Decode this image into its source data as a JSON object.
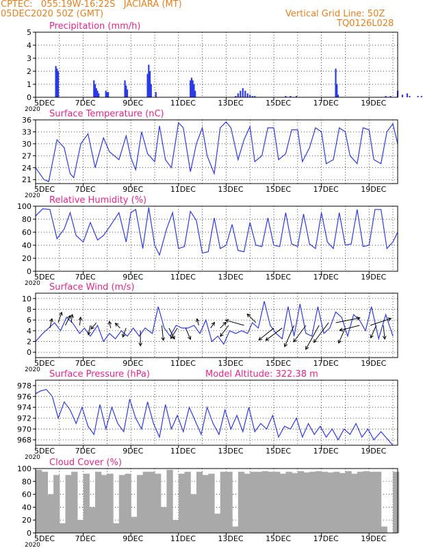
{
  "header": {
    "left_line1": "CPTEC:   055:19W-16:22S   JACIARA (MT)",
    "left_line2": "05DEC2020 50Z (GMT)",
    "right_line1": "Vertical Grid Line: 50Z",
    "right_line2": "TQ0126L028"
  },
  "colors": {
    "title": "#e8238c",
    "header": "#e8801e",
    "line": "#2a3be6",
    "cloud": "#a9a9a9"
  },
  "x_ticks": [
    "5DEC",
    "7DEC",
    "9DEC",
    "11DEC",
    "13DEC",
    "15DEC",
    "17DEC",
    "19DEC"
  ],
  "year_label": "2020",
  "chart_data": [
    {
      "type": "bar",
      "title": "Precipitation (mm/h)",
      "ylim": [
        0,
        5
      ],
      "yticks": [
        0,
        1,
        2,
        3,
        4,
        5
      ],
      "x_unit": "days since 5DEC 00Z",
      "x": [
        0.85,
        0.9,
        0.95,
        2.45,
        2.5,
        2.55,
        2.6,
        2.65,
        2.95,
        3.0,
        3.05,
        3.75,
        3.8,
        3.85,
        4.7,
        4.75,
        4.8,
        4.85,
        5.05,
        6.5,
        6.55,
        6.6,
        6.65,
        6.7,
        8.4,
        8.5,
        8.6,
        8.7,
        8.8,
        8.9,
        9.0,
        9.1,
        9.2,
        10.5,
        10.7,
        10.95,
        12.6,
        12.65,
        12.7,
        14.7,
        14.9,
        15.2,
        15.4,
        15.6,
        15.7,
        16.05,
        16.2,
        16.35,
        16.5,
        16.55,
        16.6,
        17.3,
        17.35,
        17.4,
        17.45,
        17.5,
        17.55,
        17.6,
        17.65,
        18.85
      ],
      "values": [
        2.4,
        2.2,
        2.0,
        1.3,
        1.0,
        0.7,
        0.5,
        0.3,
        0.5,
        0.4,
        0.4,
        1.3,
        0.9,
        0.6,
        1.8,
        2.5,
        2.0,
        1.0,
        0.4,
        1.3,
        1.5,
        1.3,
        1.0,
        0.5,
        0.1,
        0.3,
        0.5,
        0.7,
        0.5,
        0.3,
        0.2,
        0.1,
        0.1,
        0.1,
        0.1,
        0.1,
        2.2,
        1.0,
        0.2,
        0.1,
        0.1,
        0.5,
        0.2,
        0.3,
        0.1,
        0.1,
        0.1,
        0.1,
        1.3,
        2.2,
        0.8,
        0.8,
        0.6,
        0.7,
        0.3,
        0.5,
        0.3,
        0.2,
        0.1,
        1.1
      ]
    },
    {
      "type": "line",
      "title": "Surface Temperature (nC)",
      "ylim": [
        20,
        36
      ],
      "yticks": [
        21,
        24,
        27,
        30,
        33,
        36
      ],
      "x_unit": "days since 5DEC 00Z",
      "x": [
        0.0,
        0.35,
        0.55,
        0.9,
        1.2,
        1.45,
        1.6,
        1.9,
        2.2,
        2.5,
        2.85,
        3.1,
        3.5,
        3.8,
        4.0,
        4.2,
        4.45,
        4.7,
        5.0,
        5.2,
        5.45,
        5.7,
        6.0,
        6.2,
        6.5,
        6.75,
        7.0,
        7.2,
        7.5,
        7.75,
        8.0,
        8.2,
        8.5,
        8.75,
        9.0,
        9.2,
        9.5,
        9.75,
        10.0,
        10.2,
        10.5,
        10.75,
        11.0,
        11.2,
        11.5,
        11.75,
        12.0,
        12.2,
        12.5,
        12.75,
        13.0,
        13.2,
        13.5,
        13.75,
        14.0,
        14.2,
        14.5,
        14.75,
        15.0,
        15.2
      ],
      "values": [
        24.0,
        21.0,
        20.5,
        31.0,
        29.0,
        22.5,
        21.5,
        30.0,
        32.5,
        24.0,
        31.5,
        28.0,
        26.0,
        32.0,
        26.5,
        23.5,
        33.0,
        27.5,
        25.5,
        34.5,
        26.0,
        24.0,
        35.3,
        34.0,
        23.0,
        30.0,
        34.0,
        27.0,
        22.5,
        34.0,
        35.5,
        34.0,
        26.0,
        31.0,
        34.3,
        25.5,
        27.0,
        34.0,
        34.0,
        26.0,
        27.5,
        33.5,
        33.5,
        25.5,
        29.0,
        34.0,
        33.0,
        25.0,
        26.0,
        34.0,
        33.0,
        27.0,
        25.0,
        34.0,
        33.5,
        26.0,
        25.0,
        33.0,
        35.0,
        30.0
      ]
    },
    {
      "type": "line",
      "title": "Relative Humidity (%)",
      "ylim": [
        0,
        100
      ],
      "yticks": [
        0,
        20,
        40,
        60,
        80,
        100
      ],
      "x_unit": "days since 5DEC 00Z",
      "x": [
        0.0,
        0.3,
        0.6,
        0.9,
        1.2,
        1.45,
        1.7,
        2.0,
        2.3,
        2.6,
        2.85,
        3.1,
        3.5,
        3.8,
        4.0,
        4.2,
        4.5,
        4.75,
        5.0,
        5.2,
        5.5,
        5.75,
        6.0,
        6.25,
        6.5,
        6.75,
        7.0,
        7.25,
        7.5,
        7.75,
        8.0,
        8.25,
        8.5,
        8.75,
        9.0,
        9.25,
        9.5,
        9.75,
        10.0,
        10.25,
        10.5,
        10.75,
        11.0,
        11.25,
        11.5,
        11.75,
        12.0,
        12.25,
        12.5,
        12.75,
        13.0,
        13.25,
        13.5,
        13.75,
        14.0,
        14.25,
        14.5,
        14.75,
        15.0,
        15.2
      ],
      "values": [
        85.0,
        96.0,
        95.0,
        50.0,
        65.0,
        90.0,
        55.0,
        45.0,
        75.0,
        48.0,
        55.0,
        68.0,
        90.0,
        45.0,
        90.0,
        95.0,
        35.0,
        98.0,
        40.0,
        25.0,
        65.0,
        90.0,
        35.0,
        38.0,
        92.0,
        78.0,
        28.0,
        30.0,
        82.0,
        35.0,
        40.0,
        72.0,
        32.0,
        30.0,
        75.0,
        40.0,
        38.0,
        82.0,
        40.0,
        38.0,
        90.0,
        42.0,
        38.0,
        88.0,
        42.0,
        35.0,
        90.0,
        45.0,
        35.0,
        90.0,
        40.0,
        42.0,
        95.0,
        38.0,
        40.0,
        95.0,
        95.0,
        35.0,
        45.0,
        60.0
      ]
    },
    {
      "type": "line",
      "title": "Surface Wind (m/s)",
      "ylim": [
        -1,
        11
      ],
      "yticks": [
        0,
        2,
        4,
        6,
        8,
        10
      ],
      "x_unit": "days since 5DEC 00Z",
      "x": [
        0.0,
        0.3,
        0.55,
        0.8,
        1.05,
        1.3,
        1.55,
        1.85,
        2.05,
        2.3,
        2.6,
        2.85,
        3.1,
        3.35,
        3.6,
        3.85,
        4.1,
        4.35,
        4.6,
        4.9,
        5.15,
        5.4,
        5.65,
        5.9,
        6.15,
        6.4,
        6.65,
        6.9,
        7.15,
        7.4,
        7.65,
        7.9,
        8.15,
        8.4,
        8.65,
        8.9,
        9.1,
        9.35,
        9.6,
        9.85,
        10.1,
        10.35,
        10.6,
        10.85,
        11.1,
        11.35,
        11.6,
        11.85,
        12.1,
        12.35,
        12.6,
        12.85,
        13.1,
        13.35,
        13.6,
        13.85,
        14.1,
        14.4,
        14.7,
        15.0
      ],
      "values": [
        2.0,
        3.5,
        4.5,
        5.5,
        4.0,
        6.5,
        5.5,
        3.5,
        4.5,
        3.0,
        5.0,
        2.0,
        3.5,
        2.5,
        4.0,
        3.0,
        4.5,
        3.0,
        4.5,
        3.5,
        8.5,
        4.5,
        3.0,
        5.0,
        4.5,
        4.5,
        5.0,
        3.5,
        6.0,
        2.0,
        3.0,
        1.5,
        4.0,
        3.5,
        4.0,
        3.5,
        5.5,
        4.5,
        9.5,
        5.0,
        3.5,
        2.5,
        8.5,
        3.0,
        9.0,
        3.5,
        3.0,
        8.5,
        3.5,
        4.5,
        7.5,
        6.5,
        3.0,
        7.0,
        6.0,
        4.0,
        8.5,
        2.5,
        7.0,
        3.0
      ]
    },
    {
      "type": "line",
      "title": "Surface Pressure (hPa)",
      "annotation": "Model Altitude: 322.38 m",
      "ylim": [
        967,
        979
      ],
      "yticks": [
        968,
        970,
        972,
        974,
        976,
        978
      ],
      "x_unit": "days since 5DEC 00Z",
      "x": [
        0.0,
        0.2,
        0.45,
        0.7,
        0.95,
        1.2,
        1.45,
        1.7,
        1.95,
        2.2,
        2.45,
        2.7,
        2.95,
        3.2,
        3.45,
        3.7,
        3.95,
        4.2,
        4.45,
        4.7,
        4.95,
        5.2,
        5.45,
        5.7,
        5.95,
        6.2,
        6.45,
        6.7,
        6.95,
        7.2,
        7.45,
        7.7,
        7.95,
        8.2,
        8.45,
        8.7,
        8.95,
        9.2,
        9.45,
        9.7,
        9.95,
        10.2,
        10.45,
        10.7,
        10.95,
        11.2,
        11.45,
        11.7,
        11.95,
        12.2,
        12.45,
        12.7,
        12.95,
        13.2,
        13.45,
        13.7,
        13.95,
        14.2,
        14.5,
        15.0
      ],
      "values": [
        976.5,
        977.0,
        977.3,
        976.0,
        972.0,
        975.0,
        973.5,
        971.0,
        974.0,
        970.5,
        969.0,
        974.5,
        970.0,
        974.0,
        971.0,
        969.5,
        975.5,
        972.0,
        970.0,
        975.0,
        971.0,
        968.5,
        974.5,
        970.0,
        972.5,
        969.5,
        974.0,
        971.5,
        969.0,
        974.0,
        971.0,
        969.0,
        973.5,
        970.0,
        972.5,
        969.5,
        974.0,
        969.5,
        971.0,
        970.0,
        972.5,
        968.5,
        970.5,
        970.0,
        972.0,
        968.5,
        971.0,
        969.0,
        970.5,
        968.5,
        970.0,
        968.0,
        970.0,
        969.0,
        971.0,
        968.5,
        970.0,
        968.0,
        969.5,
        967.0
      ]
    },
    {
      "type": "bar",
      "title": "Cloud Cover (%)",
      "ylim": [
        0,
        100
      ],
      "yticks": [
        0,
        20,
        40,
        60,
        80,
        100
      ],
      "x_unit": "days since 5DEC 00Z",
      "x": [
        0.0,
        0.25,
        0.5,
        0.75,
        1.0,
        1.25,
        1.5,
        1.75,
        2.0,
        2.25,
        2.5,
        2.75,
        3.0,
        3.25,
        3.5,
        3.75,
        4.0,
        4.25,
        4.5,
        4.75,
        5.0,
        5.25,
        5.5,
        5.75,
        6.0,
        6.25,
        6.5,
        6.75,
        7.0,
        7.25,
        7.5,
        7.75,
        8.0,
        8.25,
        8.5,
        8.75,
        9.0,
        9.25,
        9.5,
        9.75,
        10.0,
        10.25,
        10.5,
        10.75,
        11.0,
        11.25,
        11.5,
        11.75,
        12.0,
        12.25,
        12.5,
        12.75,
        13.0,
        13.25,
        13.5,
        13.75,
        14.0,
        14.25,
        14.5,
        15.0
      ],
      "values": [
        98,
        95,
        60,
        90,
        15,
        90,
        95,
        20,
        92,
        40,
        95,
        90,
        92,
        15,
        90,
        92,
        25,
        90,
        95,
        95,
        92,
        40,
        98,
        20,
        92,
        95,
        60,
        95,
        90,
        92,
        30,
        95,
        95,
        10,
        95,
        92,
        95,
        95,
        96,
        95,
        95,
        92,
        95,
        93,
        96,
        94,
        95,
        96,
        95,
        94,
        95,
        93,
        96,
        92,
        95,
        96,
        95,
        95,
        10,
        95
      ]
    }
  ],
  "wind_vectors": {
    "x_unit": "days since 5DEC 00Z",
    "x": [
      0.6,
      0.95,
      1.25,
      1.5,
      1.85,
      2.3,
      2.55,
      3.15,
      3.55,
      3.8,
      4.4,
      5.3,
      5.6,
      5.95,
      6.3,
      6.85,
      7.35,
      7.75,
      8.1,
      8.75,
      9.25,
      10.0,
      10.35,
      10.85,
      11.35,
      11.9,
      12.3,
      12.6,
      13.0,
      13.6,
      14.05,
      14.3,
      14.6
    ],
    "y": [
      4.5,
      5.5,
      5.0,
      5.5,
      5.0,
      5.0,
      5.5,
      4.5,
      4.5,
      4.5,
      4.0,
      5.0,
      4.5,
      4.5,
      4.5,
      5.0,
      4.5,
      4.5,
      5.0,
      5.0,
      5.5,
      4.5,
      4.5,
      5.0,
      5.0,
      5.0,
      5.5,
      5.5,
      4.5,
      5.0,
      5.0,
      5.0,
      5.0
    ],
    "u": [
      0.2,
      0.3,
      0.4,
      0.1,
      0.1,
      -0.2,
      -0.5,
      -0.1,
      -0.5,
      -0.3,
      0.0,
      0.1,
      0.4,
      -0.5,
      0.3,
      -0.2,
      0.4,
      0.5,
      -0.6,
      -0.7,
      -0.5,
      -1.0,
      -0.8,
      -0.4,
      -0.6,
      -0.5,
      -0.6,
      1.0,
      -0.4,
      -1.2,
      0.9,
      -0.4,
      0.1
    ],
    "v": [
      0.9,
      0.9,
      0.8,
      0.9,
      0.8,
      -0.9,
      -0.6,
      0.5,
      0.5,
      -0.8,
      -1.0,
      -1.0,
      -0.8,
      -0.8,
      -0.7,
      0.7,
      0.6,
      0.5,
      -0.8,
      0.2,
      0.5,
      -0.8,
      -0.6,
      -0.9,
      -0.8,
      -0.9,
      -0.8,
      0.2,
      -0.9,
      -0.3,
      0.3,
      -0.9,
      -1.0
    ],
    "length": [
      14,
      16,
      16,
      12,
      12,
      14,
      12,
      10,
      10,
      14,
      22,
      22,
      18,
      18,
      18,
      10,
      10,
      12,
      20,
      28,
      18,
      28,
      30,
      34,
      30,
      40,
      36,
      36,
      24,
      30,
      32,
      20,
      20
    ]
  }
}
